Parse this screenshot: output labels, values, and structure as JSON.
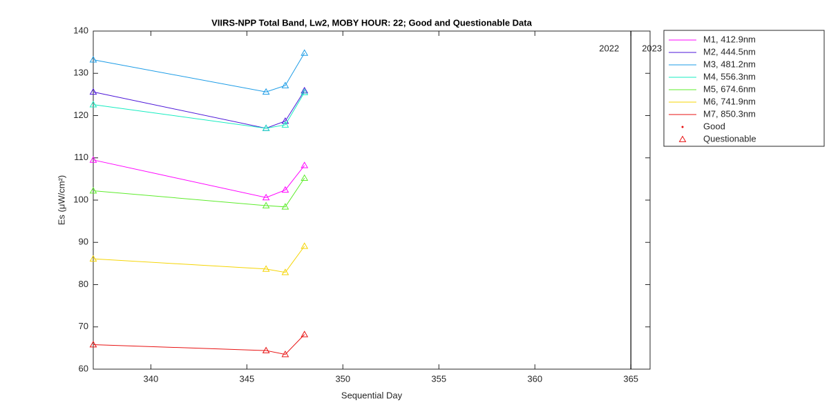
{
  "chart_data": {
    "type": "line",
    "title": "VIIRS-NPP Total Band,  Lw2, MOBY HOUR: 22;  Good and Questionable Data",
    "xlabel": "Sequential Day",
    "ylabel": "Es (μW/cm²)",
    "x": [
      337,
      346,
      347,
      348
    ],
    "series": [
      {
        "name": "M1, 412.9nm",
        "color": "#ff00ff",
        "values": [
          109.5,
          100.6,
          102.4,
          108.2
        ]
      },
      {
        "name": "M2, 444.5nm",
        "color": "#4b14d8",
        "values": [
          125.6,
          117.0,
          118.7,
          125.9
        ]
      },
      {
        "name": "M3, 481.2nm",
        "color": "#1a9be6",
        "values": [
          133.2,
          125.6,
          127.1,
          134.8
        ]
      },
      {
        "name": "M4, 556.3nm",
        "color": "#14ecc0",
        "values": [
          122.6,
          117.0,
          117.8,
          125.5
        ]
      },
      {
        "name": "M5, 674.6nm",
        "color": "#5cec2a",
        "values": [
          102.2,
          98.7,
          98.4,
          105.2
        ]
      },
      {
        "name": "M6, 741.9nm",
        "color": "#f5d400",
        "values": [
          86.1,
          83.7,
          82.9,
          89.1
        ]
      },
      {
        "name": "M7, 850.3nm",
        "color": "#e81010",
        "values": [
          65.8,
          64.4,
          63.5,
          68.2
        ]
      }
    ],
    "marker_legend": [
      {
        "name": "Good",
        "color": "#e81010",
        "marker": "dot"
      },
      {
        "name": "Questionable",
        "color": "#e81010",
        "marker": "triangle"
      }
    ],
    "year_line": {
      "x": 365,
      "left_label": "2022",
      "right_label": "2023"
    },
    "xlim": [
      337,
      366
    ],
    "ylim": [
      60,
      140
    ],
    "xticks": [
      340,
      345,
      350,
      355,
      360,
      365
    ],
    "yticks": [
      60,
      70,
      80,
      90,
      100,
      110,
      120,
      130,
      140
    ],
    "legend": "outside-right"
  }
}
